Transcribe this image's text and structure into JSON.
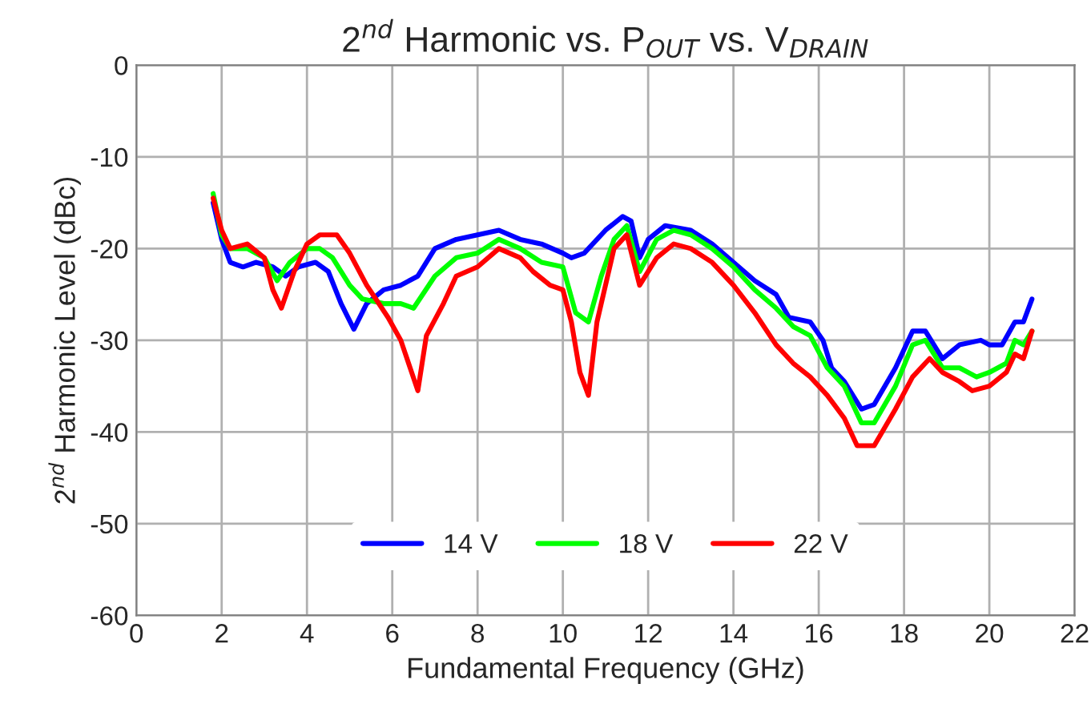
{
  "chart_data": {
    "type": "line",
    "title": "2$^{nd}$ Harmonic vs. P$_{OUT}$ vs. V$_{DRAIN}$",
    "xlabel": "Fundamental Frequency (GHz)",
    "ylabel": "2$^{nd}$ Harmonic Level (dBc)",
    "xlim": [
      0,
      22
    ],
    "xticks": [
      0,
      2,
      4,
      6,
      8,
      10,
      12,
      14,
      16,
      18,
      20,
      22
    ],
    "ylim": [
      -60,
      0
    ],
    "yticks": [
      -60,
      -50,
      -40,
      -30,
      -20,
      -10,
      0
    ],
    "grid": true,
    "legend": "bottom",
    "marker": "none",
    "line_style": "solid",
    "series": [
      {
        "name": "14 V",
        "color": "#0000ff",
        "x": [
          1.8,
          2.0,
          2.2,
          2.5,
          2.8,
          3.2,
          3.5,
          3.8,
          4.2,
          4.5,
          4.8,
          5.1,
          5.4,
          5.8,
          6.2,
          6.6,
          7.0,
          7.5,
          8.0,
          8.5,
          9.0,
          9.5,
          10.0,
          10.2,
          10.5,
          11.0,
          11.4,
          11.6,
          11.8,
          12.0,
          12.4,
          13.0,
          13.5,
          14.0,
          14.5,
          15.0,
          15.3,
          15.8,
          16.1,
          16.3,
          16.6,
          17.0,
          17.3,
          17.8,
          18.2,
          18.5,
          18.9,
          19.3,
          19.8,
          20.0,
          20.3,
          20.6,
          20.8,
          21.0
        ],
        "values": [
          -15,
          -19,
          -21.5,
          -22,
          -21.5,
          -22,
          -23,
          -22,
          -21.5,
          -22.5,
          -26,
          -28.8,
          -26,
          -24.5,
          -24,
          -23,
          -20,
          -19,
          -18.5,
          -18,
          -19,
          -19.5,
          -20.5,
          -21,
          -20.5,
          -18,
          -16.5,
          -17,
          -21,
          -19,
          -17.5,
          -18,
          -19.5,
          -21.5,
          -23.5,
          -25,
          -27.5,
          -28,
          -30,
          -33,
          -34.5,
          -37.5,
          -37,
          -33,
          -29,
          -29,
          -32,
          -30.5,
          -30,
          -30.5,
          -30.5,
          -28,
          -28,
          -25.5
        ]
      },
      {
        "name": "18 V",
        "color": "#00ff00",
        "x": [
          1.8,
          2.0,
          2.2,
          2.6,
          3.0,
          3.3,
          3.6,
          4.0,
          4.3,
          4.6,
          5.0,
          5.3,
          5.8,
          6.2,
          6.5,
          7.0,
          7.5,
          8.0,
          8.5,
          9.0,
          9.5,
          10.0,
          10.3,
          10.6,
          10.9,
          11.2,
          11.5,
          11.8,
          12.2,
          12.6,
          13.0,
          13.5,
          14.0,
          14.5,
          15.0,
          15.4,
          15.8,
          16.2,
          16.6,
          17.0,
          17.3,
          17.8,
          18.2,
          18.5,
          18.9,
          19.3,
          19.7,
          20.0,
          20.4,
          20.6,
          20.8,
          21.0
        ],
        "values": [
          -14,
          -18.5,
          -20,
          -20,
          -21,
          -23.5,
          -21.5,
          -20,
          -20,
          -21,
          -24,
          -25.5,
          -26,
          -26,
          -26.5,
          -23,
          -21,
          -20.5,
          -19,
          -20,
          -21.5,
          -22,
          -27,
          -28,
          -23,
          -19,
          -17.5,
          -22.5,
          -19,
          -18,
          -18.5,
          -20,
          -22,
          -24.5,
          -26.5,
          -28.5,
          -29.5,
          -33,
          -35,
          -39,
          -39,
          -35,
          -30.5,
          -30,
          -33,
          -33,
          -34,
          -33.5,
          -32.5,
          -30,
          -30.5,
          -29
        ]
      },
      {
        "name": "22 V",
        "color": "#ff0000",
        "x": [
          1.8,
          2.0,
          2.2,
          2.6,
          3.0,
          3.2,
          3.4,
          3.7,
          4.0,
          4.3,
          4.7,
          5.0,
          5.4,
          5.9,
          6.2,
          6.6,
          6.8,
          7.2,
          7.5,
          8.0,
          8.5,
          9.0,
          9.3,
          9.7,
          10.0,
          10.2,
          10.4,
          10.6,
          10.8,
          11.2,
          11.5,
          11.8,
          12.2,
          12.6,
          13.0,
          13.5,
          14.0,
          14.5,
          15.0,
          15.4,
          15.8,
          16.2,
          16.6,
          16.9,
          17.3,
          17.8,
          18.2,
          18.6,
          18.9,
          19.3,
          19.6,
          20.0,
          20.4,
          20.6,
          20.8,
          21.0
        ],
        "values": [
          -14.5,
          -18,
          -20,
          -19.5,
          -21,
          -24.5,
          -26.5,
          -22.5,
          -19.5,
          -18.5,
          -18.5,
          -20.5,
          -24,
          -27.5,
          -30,
          -35.5,
          -29.5,
          -26,
          -23,
          -22,
          -20,
          -21,
          -22.5,
          -24,
          -24.5,
          -28,
          -33.5,
          -36,
          -28,
          -20,
          -18.5,
          -24,
          -21,
          -19.5,
          -20,
          -21.5,
          -24,
          -27,
          -30.5,
          -32.5,
          -34,
          -36,
          -38.5,
          -41.5,
          -41.5,
          -37.5,
          -34,
          -32,
          -33.5,
          -34.5,
          -35.5,
          -35,
          -33.5,
          -31.5,
          -32,
          -29
        ]
      }
    ]
  }
}
